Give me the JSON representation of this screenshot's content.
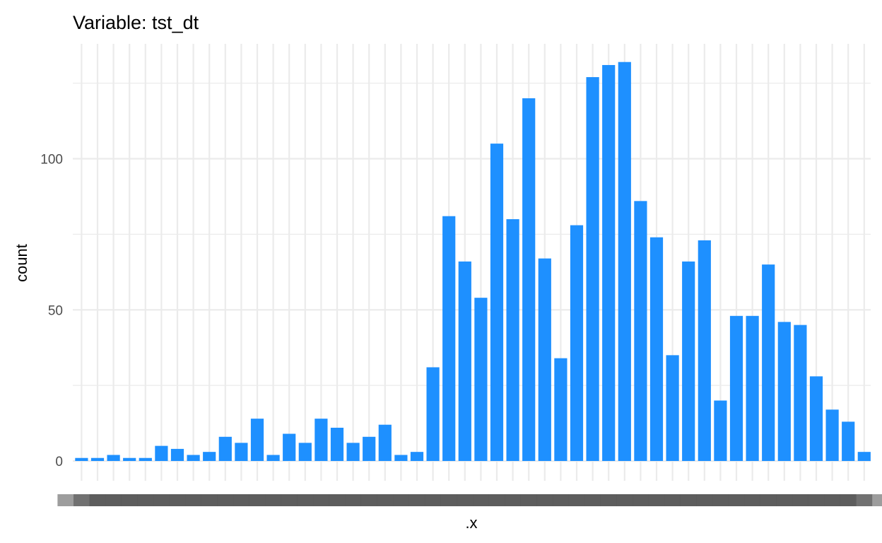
{
  "chart_data": {
    "type": "bar",
    "title": "Variable: tst_dt",
    "xlabel": ".x",
    "ylabel": "count",
    "ylim": [
      0,
      133
    ],
    "yticks": [
      0,
      50,
      100
    ],
    "grid": true,
    "legend": "none",
    "bar_color": "#1E90FF",
    "categories_note": "tick labels overlap and are unreadable in the source",
    "values": [
      1,
      1,
      2,
      1,
      1,
      5,
      4,
      2,
      3,
      8,
      6,
      14,
      2,
      9,
      6,
      14,
      11,
      6,
      8,
      12,
      2,
      3,
      31,
      81,
      66,
      54,
      105,
      80,
      120,
      67,
      34,
      78,
      127,
      131,
      132,
      86,
      74,
      35,
      66,
      73,
      20,
      48,
      48,
      65,
      46,
      45,
      28,
      17,
      13,
      3
    ]
  },
  "colors": {
    "bar": "#1E90FF",
    "grid": "#ebebeb",
    "tick_text": "#4d4d4d"
  }
}
